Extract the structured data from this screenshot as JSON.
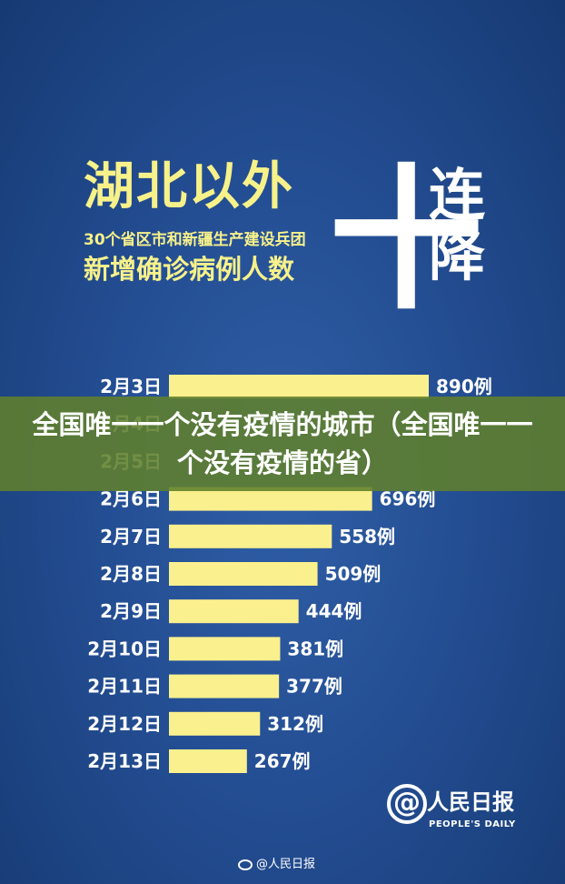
{
  "title": {
    "main": "湖北以外",
    "sub1": "30个省区市和新疆生产建设兵团",
    "sub2": "新增确诊病例人数",
    "big_number": "十",
    "side": "连降"
  },
  "banner": {
    "text": "全国唯一一个没有疫情的城市（全国唯一一个没有疫情的省）"
  },
  "logo": {
    "at": "@",
    "name": "人民日报",
    "en": "PEOPLE'S DAILY"
  },
  "watermark": {
    "text": "@人民日报",
    "icon": "weibo-icon"
  },
  "colors": {
    "bar": "#fbf08e",
    "label": "#ffffff",
    "background": "#244e93"
  },
  "chart_data": {
    "type": "bar",
    "orientation": "horizontal",
    "unit_suffix": "例",
    "categories": [
      "2月3日",
      "2月4日",
      "2月5日",
      "2月6日",
      "2月7日",
      "2月8日",
      "2月9日",
      "2月10日",
      "2月11日",
      "2月12日",
      "2月13日"
    ],
    "values": [
      890,
      null,
      null,
      696,
      558,
      509,
      444,
      381,
      377,
      312,
      267
    ],
    "value_labels": [
      "890例",
      "",
      "",
      "696例",
      "558例",
      "509例",
      "444例",
      "381例",
      "377例",
      "312例",
      "267例"
    ],
    "xlim": [
      0,
      890
    ]
  }
}
